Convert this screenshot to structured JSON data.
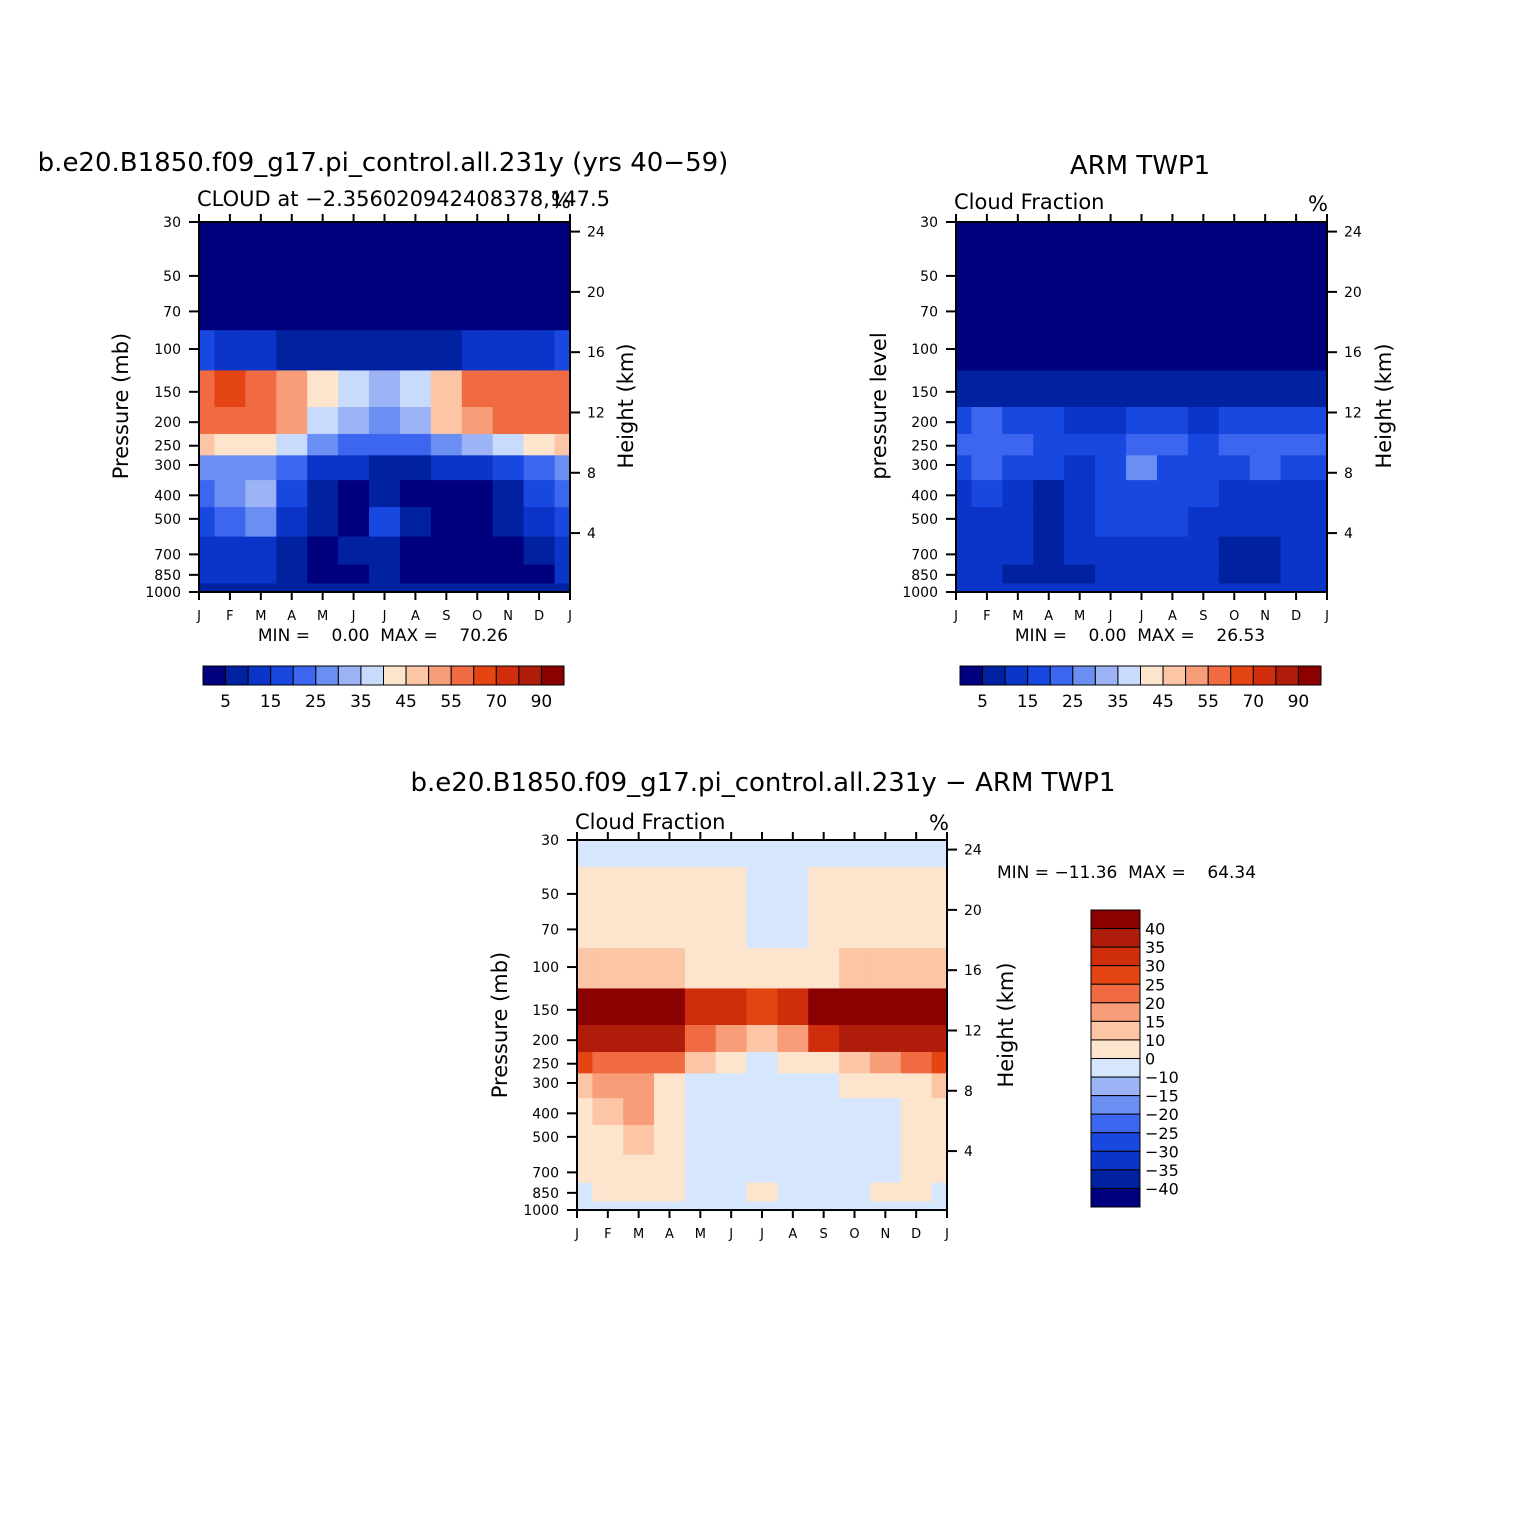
{
  "chart_data": [
    {
      "type": "heatmap",
      "title": "b.e20.B1850.f09_g17.pi_control.all.231y (yrs 40−59)",
      "subtitle_left": "CLOUD at −2.356020942408378,147.5",
      "units": "%",
      "ylabel": "Pressure (mb)",
      "ylabel_right": "Height (km)",
      "min_max": "MIN =    0.00  MAX =    70.26",
      "x_ticks": [
        "J",
        "F",
        "M",
        "A",
        "M",
        "J",
        "J",
        "A",
        "S",
        "O",
        "N",
        "D",
        "J"
      ],
      "y_ticks": [
        "30",
        "50",
        "70",
        "100",
        "150",
        "200",
        "250",
        "300",
        "400",
        "500",
        "700",
        "850",
        "1000"
      ],
      "y_ticks_right": [
        "24",
        "20",
        "16",
        "12",
        "8",
        "4"
      ],
      "colorbar_labels": [
        "5",
        "15",
        "25",
        "35",
        "45",
        "55",
        "70",
        "90"
      ],
      "colorbar_levels": [
        5,
        10,
        15,
        20,
        25,
        30,
        35,
        40,
        45,
        50,
        55,
        60,
        70,
        80,
        90
      ],
      "levels_hpa": [
        30,
        50,
        70,
        100,
        150,
        200,
        250,
        300,
        400,
        500,
        700,
        850,
        1000
      ],
      "values": [
        [
          0,
          0,
          0,
          0,
          0,
          0,
          0,
          0,
          0,
          0,
          0,
          0,
          0
        ],
        [
          0,
          0,
          0,
          0,
          0,
          0,
          0,
          0,
          0,
          0,
          0,
          0,
          0
        ],
        [
          0,
          0,
          0,
          0,
          0,
          0,
          0,
          0,
          0,
          0,
          0,
          0,
          0
        ],
        [
          15,
          12,
          10,
          9,
          8,
          7,
          7,
          7,
          8,
          10,
          12,
          14,
          15
        ],
        [
          58,
          60,
          58,
          52,
          40,
          38,
          32,
          35,
          45,
          55,
          58,
          58,
          58
        ],
        [
          57,
          58,
          55,
          52,
          35,
          30,
          28,
          32,
          45,
          52,
          55,
          57,
          57
        ],
        [
          45,
          42,
          40,
          35,
          25,
          22,
          20,
          22,
          25,
          30,
          38,
          42,
          45
        ],
        [
          28,
          25,
          25,
          20,
          12,
          10,
          8,
          8,
          10,
          12,
          15,
          20,
          28
        ],
        [
          22,
          25,
          30,
          15,
          5,
          2,
          6,
          4,
          3,
          4,
          8,
          15,
          22
        ],
        [
          15,
          22,
          28,
          12,
          5,
          4,
          15,
          6,
          3,
          3,
          6,
          12,
          15
        ],
        [
          12,
          12,
          10,
          8,
          4,
          6,
          8,
          4,
          3,
          3,
          4,
          6,
          12
        ],
        [
          10,
          10,
          10,
          6,
          3,
          3,
          8,
          3,
          3,
          3,
          3,
          4,
          10
        ],
        [
          8,
          8,
          8,
          8,
          8,
          8,
          8,
          8,
          8,
          8,
          8,
          8,
          8
        ]
      ]
    },
    {
      "type": "heatmap",
      "title": "ARM TWP1",
      "subtitle_left": "Cloud Fraction",
      "units": "%",
      "ylabel": "pressure level",
      "ylabel_right": "Height (km)",
      "min_max": "MIN =    0.00  MAX =    26.53",
      "x_ticks": [
        "J",
        "F",
        "M",
        "A",
        "M",
        "J",
        "J",
        "A",
        "S",
        "O",
        "N",
        "D",
        "J"
      ],
      "y_ticks": [
        "30",
        "50",
        "70",
        "100",
        "150",
        "200",
        "250",
        "300",
        "400",
        "500",
        "700",
        "850",
        "1000"
      ],
      "y_ticks_right": [
        "24",
        "20",
        "16",
        "12",
        "8",
        "4"
      ],
      "colorbar_labels": [
        "5",
        "15",
        "25",
        "35",
        "45",
        "55",
        "70",
        "90"
      ],
      "colorbar_levels": [
        5,
        10,
        15,
        20,
        25,
        30,
        35,
        40,
        45,
        50,
        55,
        60,
        70,
        80,
        90
      ],
      "levels_hpa": [
        30,
        50,
        70,
        100,
        150,
        200,
        250,
        300,
        400,
        500,
        700,
        850,
        1000
      ],
      "values": [
        [
          0,
          0,
          0,
          0,
          0,
          0,
          0,
          0,
          0,
          0,
          0,
          0,
          0
        ],
        [
          0,
          0,
          0,
          0,
          0,
          0,
          0,
          0,
          0,
          0,
          0,
          0,
          0
        ],
        [
          0,
          0,
          0,
          0,
          0,
          0,
          0,
          0,
          0,
          0,
          0,
          0,
          0
        ],
        [
          0,
          0,
          0,
          0,
          0,
          0,
          0,
          0,
          0,
          0,
          0,
          0,
          0
        ],
        [
          8,
          8,
          6,
          6,
          6,
          5,
          5,
          5,
          5,
          6,
          7,
          8,
          8
        ],
        [
          18,
          20,
          18,
          15,
          14,
          14,
          18,
          15,
          14,
          15,
          16,
          18,
          18
        ],
        [
          20,
          22,
          20,
          15,
          15,
          15,
          22,
          20,
          18,
          20,
          22,
          20,
          20
        ],
        [
          18,
          20,
          18,
          15,
          14,
          15,
          25,
          18,
          15,
          18,
          20,
          18,
          18
        ],
        [
          14,
          15,
          12,
          8,
          12,
          15,
          18,
          18,
          15,
          14,
          12,
          14,
          14
        ],
        [
          14,
          14,
          14,
          6,
          12,
          15,
          18,
          18,
          14,
          14,
          14,
          14,
          14
        ],
        [
          12,
          12,
          10,
          6,
          10,
          12,
          12,
          12,
          12,
          6,
          6,
          10,
          12
        ],
        [
          12,
          12,
          8,
          5,
          8,
          10,
          10,
          12,
          12,
          6,
          8,
          10,
          12
        ],
        [
          10,
          10,
          10,
          10,
          10,
          10,
          10,
          10,
          10,
          10,
          10,
          10,
          10
        ]
      ]
    },
    {
      "type": "heatmap",
      "title": "b.e20.B1850.f09_g17.pi_control.all.231y − ARM TWP1",
      "subtitle_left": "Cloud Fraction",
      "units": "%",
      "ylabel": "Pressure (mb)",
      "ylabel_right": "Height (km)",
      "min_max": "MIN = −11.36  MAX =    64.34",
      "x_ticks": [
        "J",
        "F",
        "M",
        "A",
        "M",
        "J",
        "J",
        "A",
        "S",
        "O",
        "N",
        "D",
        "J"
      ],
      "y_ticks": [
        "30",
        "50",
        "70",
        "100",
        "150",
        "200",
        "250",
        "300",
        "400",
        "500",
        "700",
        "850",
        "1000"
      ],
      "y_ticks_right": [
        "24",
        "20",
        "16",
        "12",
        "8",
        "4"
      ],
      "colorbar_labels": [
        "40",
        "35",
        "30",
        "25",
        "20",
        "15",
        "10",
        "0",
        "−10",
        "−15",
        "−20",
        "−25",
        "−30",
        "−35",
        "−40"
      ],
      "colorbar_levels": [
        -40,
        -35,
        -30,
        -25,
        -20,
        -15,
        -10,
        0,
        10,
        15,
        20,
        25,
        30,
        35,
        40
      ],
      "levels_hpa": [
        30,
        50,
        70,
        100,
        150,
        200,
        250,
        300,
        400,
        500,
        700,
        850,
        1000
      ],
      "values": [
        [
          -2,
          -2,
          -2,
          -2,
          -2,
          -2,
          -2,
          -2,
          -2,
          -2,
          -2,
          -2,
          -2
        ],
        [
          2,
          2,
          2,
          2,
          2,
          2,
          -2,
          -2,
          2,
          2,
          2,
          2,
          2
        ],
        [
          2,
          2,
          2,
          2,
          2,
          2,
          -2,
          -2,
          2,
          2,
          2,
          2,
          2
        ],
        [
          12,
          12,
          12,
          10,
          8,
          6,
          5,
          5,
          8,
          10,
          12,
          12,
          12
        ],
        [
          50,
          52,
          52,
          46,
          34,
          33,
          27,
          30,
          40,
          49,
          51,
          50,
          50
        ],
        [
          39,
          38,
          37,
          37,
          21,
          16,
          10,
          17,
          31,
          36,
          39,
          39,
          39
        ],
        [
          25,
          20,
          20,
          20,
          10,
          7,
          -2,
          2,
          7,
          10,
          16,
          22,
          25
        ],
        [
          10,
          15,
          18,
          8,
          -2,
          -4,
          -2,
          -3,
          -3,
          3,
          6,
          8,
          10
        ],
        [
          8,
          10,
          18,
          7,
          -2,
          -3,
          -6,
          -3,
          -2,
          -2,
          -3,
          3,
          8
        ],
        [
          1,
          8,
          14,
          6,
          -2,
          -2,
          -2,
          -2,
          -2,
          -2,
          -2,
          2,
          1
        ],
        [
          1,
          1,
          1,
          1,
          -2,
          -2,
          -2,
          -2,
          -2,
          -2,
          -2,
          1,
          1
        ],
        [
          -2,
          1,
          1,
          1,
          -2,
          -2,
          1,
          -2,
          -2,
          -2,
          1,
          1,
          -2
        ],
        [
          -2,
          -2,
          -2,
          -2,
          -2,
          -2,
          -2,
          -2,
          -2,
          -2,
          -2,
          -2,
          -2
        ]
      ]
    }
  ],
  "colors": {
    "seq": [
      "#00007f",
      "#0022a0",
      "#0a35c8",
      "#1848e0",
      "#3c66f0",
      "#6a8ef2",
      "#9cb4f5",
      "#c9dbfc",
      "#fde4cd",
      "#fcc5a6",
      "#f79d78",
      "#f06a42",
      "#e54512",
      "#d02d0d",
      "#b01c0a",
      "#8b0000"
    ],
    "diff": [
      "#00007f",
      "#0022a0",
      "#0a35c8",
      "#1848e0",
      "#3c66f0",
      "#6a8ef2",
      "#9cb4f5",
      "#d6e6fc",
      "#fde4cd",
      "#fcc5a6",
      "#f79d78",
      "#f06a42",
      "#e54512",
      "#d02d0d",
      "#b01c0a",
      "#8b0000"
    ]
  }
}
